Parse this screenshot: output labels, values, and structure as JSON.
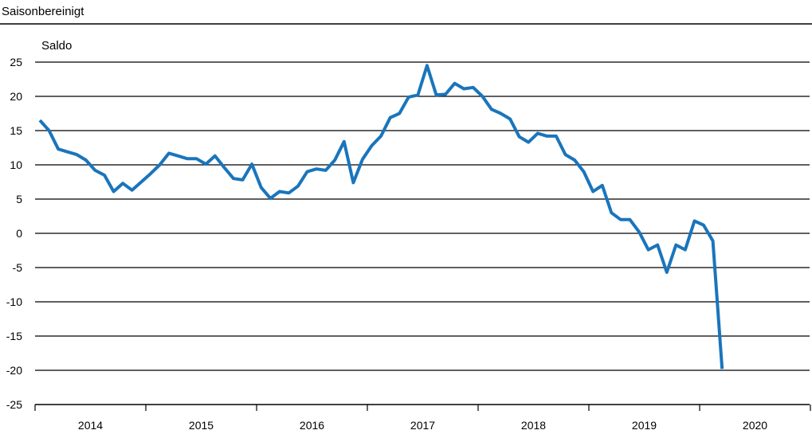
{
  "header": {
    "subtitle": "Saisonbereinigt"
  },
  "chart_data": {
    "type": "line",
    "ylabel": "Saldo",
    "ylim": [
      -25,
      25
    ],
    "yticks": [
      25,
      20,
      15,
      10,
      5,
      0,
      -5,
      -10,
      -15,
      -20,
      -25
    ],
    "categories": [
      "2014",
      "2015",
      "2016",
      "2017",
      "2018",
      "2019",
      "2020"
    ],
    "x_unit": "month index from Jan 2014",
    "grid": true,
    "series_color": "#1a75bb",
    "series": [
      {
        "x": [
          0,
          1,
          2,
          3,
          4,
          5,
          6,
          7,
          8,
          9,
          10,
          11,
          12,
          13,
          14,
          15,
          16,
          17,
          18,
          19,
          20,
          21,
          22,
          23,
          24,
          25,
          26,
          27,
          28,
          29,
          30,
          31,
          32,
          33,
          34,
          35,
          36,
          37,
          38,
          39,
          40,
          41,
          42,
          43,
          44,
          45,
          46,
          47,
          48,
          49,
          50,
          51,
          52,
          53,
          54,
          55,
          56,
          57,
          58,
          59,
          60,
          61,
          62,
          63,
          64,
          65,
          66,
          67,
          68,
          69,
          70,
          71,
          72,
          73,
          74
        ],
        "values": [
          16.5,
          15,
          12.3,
          11.9,
          11.5,
          10.7,
          9.2,
          8.5,
          6.1,
          7.3,
          6.3,
          7.5,
          8.7,
          10,
          11.7,
          11.3,
          10.9,
          10.9,
          10.1,
          11.3,
          9.6,
          8,
          7.8,
          10.1,
          6.7,
          5.1,
          6.1,
          5.9,
          6.9,
          9,
          9.4,
          9.2,
          10.7,
          13.4,
          7.4,
          10.8,
          12.8,
          14.2,
          16.9,
          17.5,
          19.9,
          20.2,
          24.5,
          20.2,
          20.3,
          21.9,
          21.1,
          21.3,
          20,
          18.1,
          17.5,
          16.7,
          14.1,
          13.3,
          14.6,
          14.2,
          14.2,
          11.5,
          10.7,
          9,
          6.1,
          7,
          3,
          2,
          2,
          0.2,
          -2.4,
          -1.7,
          -5.7,
          -1.7,
          -2.4,
          1.8,
          1.2,
          -1.1,
          -19.8
        ]
      }
    ]
  }
}
